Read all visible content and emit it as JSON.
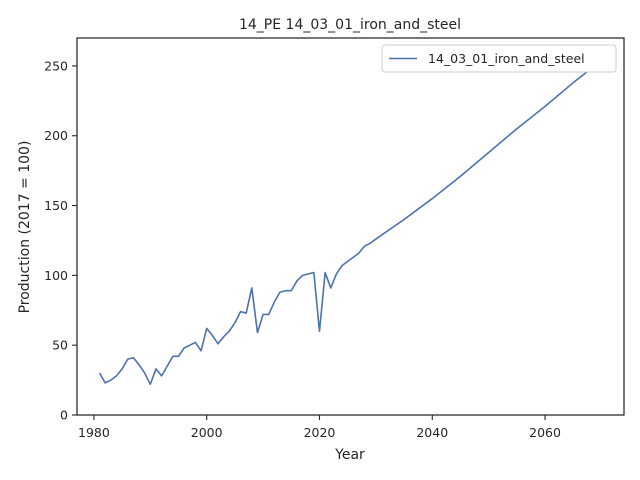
{
  "chart_data": {
    "type": "line",
    "title": "14_PE 14_03_01_iron_and_steel",
    "xlabel": "Year",
    "ylabel": "Production (2017 = 100)",
    "xlim": [
      1977,
      2074
    ],
    "ylim": [
      0,
      270
    ],
    "xticks": [
      1980,
      2000,
      2020,
      2040,
      2060
    ],
    "yticks": [
      0,
      50,
      100,
      150,
      200,
      250
    ],
    "xtick_labels": [
      "1980",
      "2000",
      "2020",
      "2040",
      "2060"
    ],
    "ytick_labels": [
      "0",
      "50",
      "100",
      "150",
      "200",
      "250"
    ],
    "grid": false,
    "legend_position": "top-right",
    "series": [
      {
        "name": "14_03_01_iron_and_steel",
        "color": "#4c72b0",
        "x": [
          1981,
          1982,
          1983,
          1984,
          1985,
          1986,
          1987,
          1988,
          1989,
          1990,
          1991,
          1992,
          1993,
          1994,
          1995,
          1996,
          1997,
          1998,
          1999,
          2000,
          2001,
          2002,
          2003,
          2004,
          2005,
          2006,
          2007,
          2008,
          2009,
          2010,
          2011,
          2012,
          2013,
          2014,
          2015,
          2016,
          2017,
          2018,
          2019,
          2020,
          2021,
          2022,
          2023,
          2024,
          2025,
          2026,
          2027,
          2028,
          2029,
          2030,
          2035,
          2040,
          2045,
          2050,
          2055,
          2060,
          2065,
          2071
        ],
        "y": [
          30,
          23,
          25,
          28,
          33,
          40,
          41,
          36,
          30,
          22,
          33,
          28,
          35,
          42,
          42,
          48,
          50,
          52,
          46,
          62,
          57,
          51,
          56,
          60,
          66,
          74,
          73,
          91,
          59,
          72,
          72,
          81,
          88,
          89,
          89,
          96,
          100,
          101,
          102,
          60,
          102,
          91,
          101,
          107,
          110,
          113,
          116,
          121,
          123,
          126,
          140,
          155,
          171,
          188,
          205,
          221,
          238,
          257
        ]
      }
    ]
  }
}
